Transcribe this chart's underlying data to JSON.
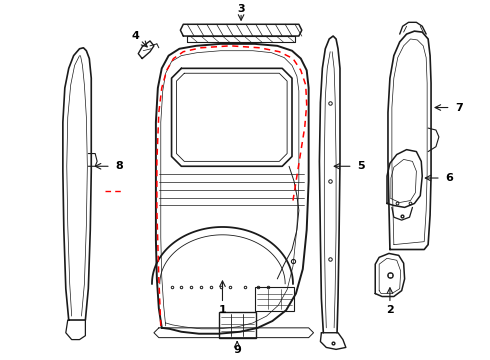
{
  "bg_color": "#ffffff",
  "line_color": "#1a1a1a",
  "dashed_color": "#ff0000",
  "figsize": [
    4.9,
    3.6
  ],
  "dpi": 100,
  "label_fontsize": 8
}
